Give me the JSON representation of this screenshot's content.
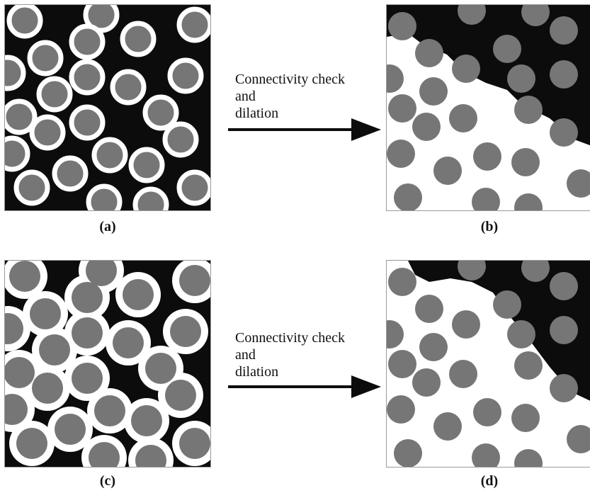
{
  "process": {
    "step_label_top": [
      "Connectivity check",
      "and",
      "dilation"
    ],
    "step_label_bottom": [
      "Connectivity check",
      "and",
      "dilation"
    ]
  },
  "captions": {
    "a": "(a)",
    "b": "(b)",
    "c": "(c)",
    "d": "(d)"
  },
  "colors": {
    "particle": "#767676",
    "pore": "#0c0c0c",
    "coating": "#ffffff",
    "connected_region": "#ffffff"
  }
}
